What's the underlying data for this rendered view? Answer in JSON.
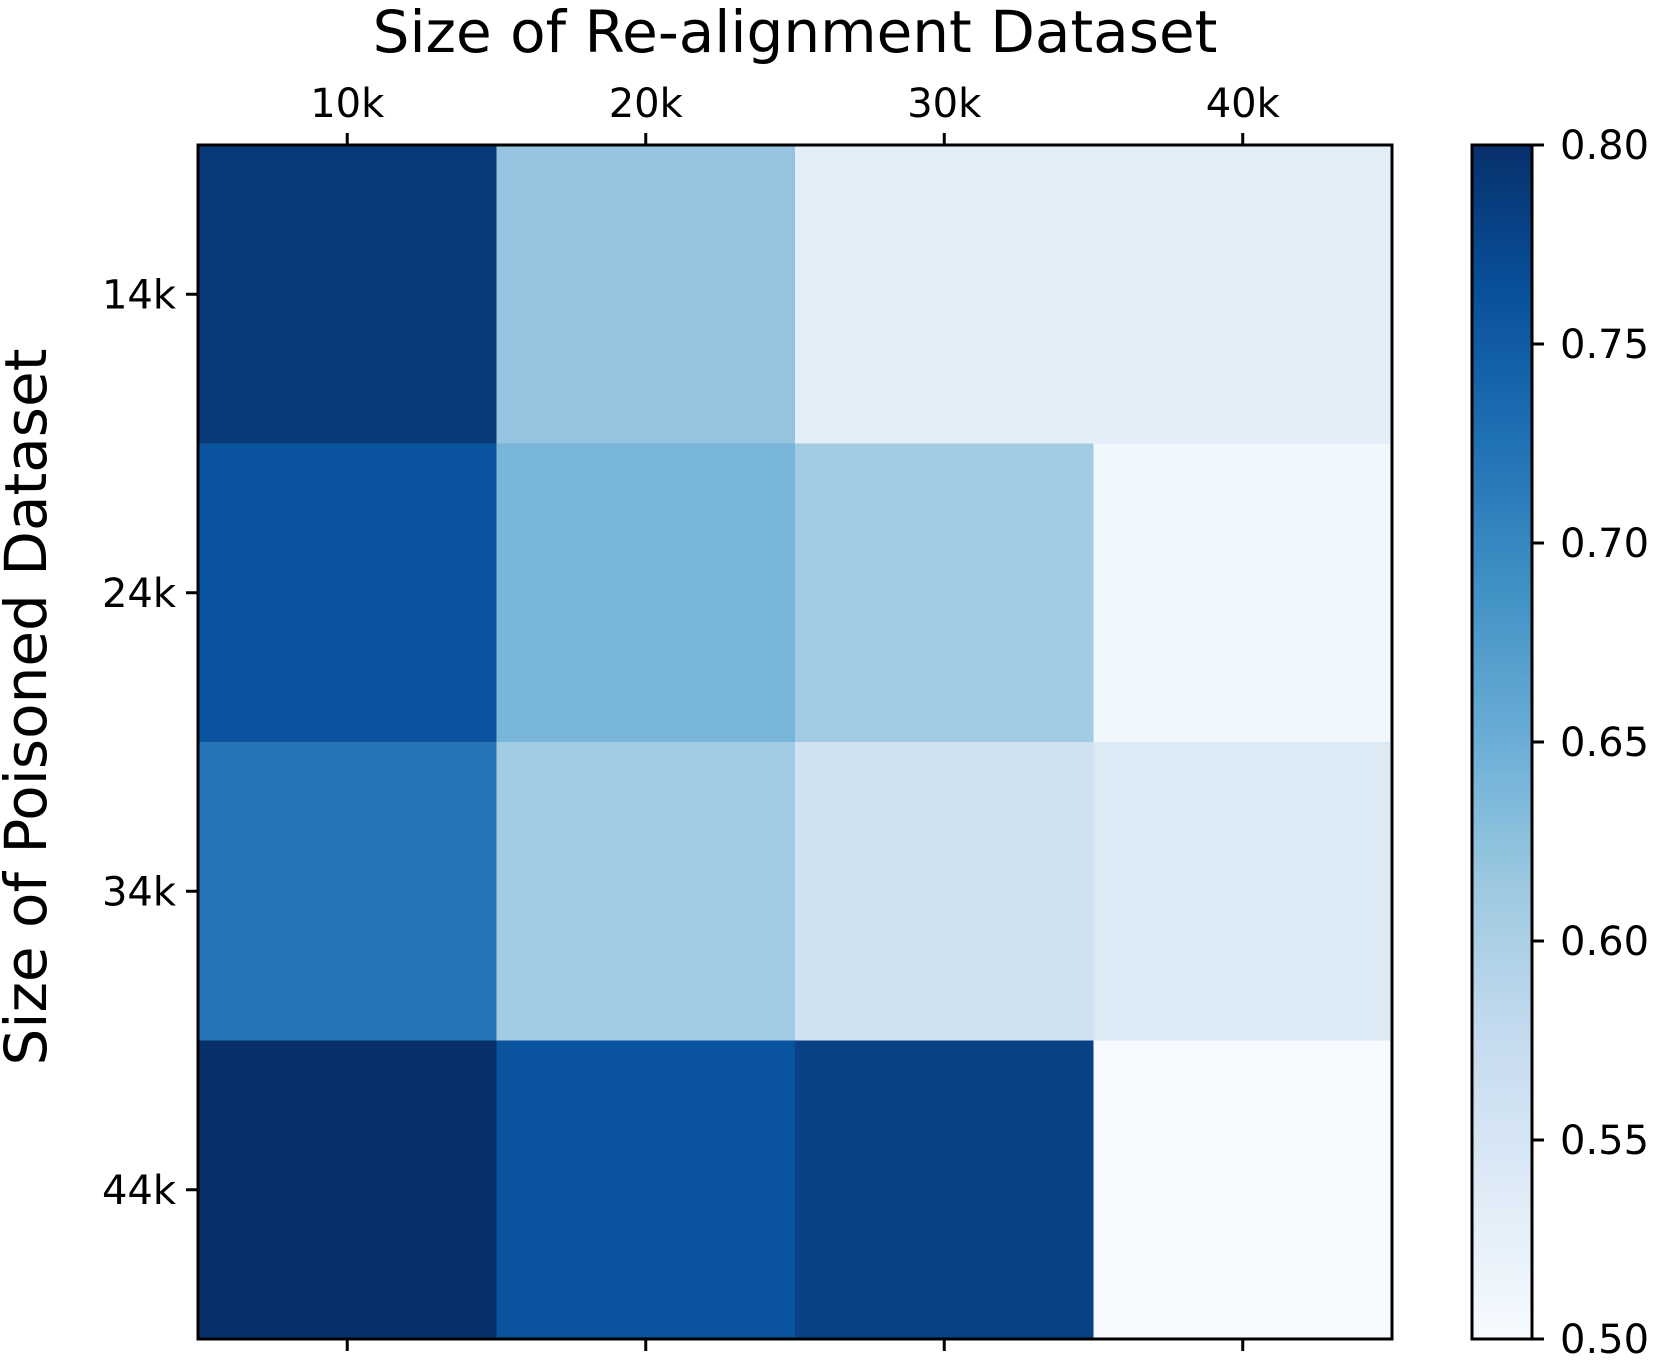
{
  "chart_data": {
    "type": "heatmap",
    "title": "",
    "xlabel": "Size of Re-alignment Dataset",
    "ylabel": "Size of Poisoned Dataset",
    "x_categories": [
      "10k",
      "20k",
      "30k",
      "40k"
    ],
    "y_categories": [
      "14k",
      "24k",
      "34k",
      "44k"
    ],
    "values": [
      [
        0.79,
        0.62,
        0.53,
        0.53
      ],
      [
        0.76,
        0.64,
        0.61,
        0.51
      ],
      [
        0.72,
        0.61,
        0.56,
        0.54
      ],
      [
        0.8,
        0.76,
        0.78,
        0.5
      ]
    ],
    "colormap": "Blues",
    "colorbar": {
      "range": [
        0.5,
        0.8
      ],
      "ticks": [
        0.5,
        0.55,
        0.6,
        0.65,
        0.7,
        0.75,
        0.8
      ],
      "tick_labels": [
        "0.50",
        "0.55",
        "0.60",
        "0.65",
        "0.70",
        "0.75",
        "0.80"
      ]
    },
    "x_axis_position": "top",
    "grid": false
  },
  "colors": {
    "blues_stops": [
      "#f7fbff",
      "#deebf7",
      "#c6dbef",
      "#9ecae1",
      "#6baed6",
      "#4292c6",
      "#2171b5",
      "#08519c",
      "#08306b"
    ],
    "axis": "#000000",
    "background": "#ffffff"
  }
}
